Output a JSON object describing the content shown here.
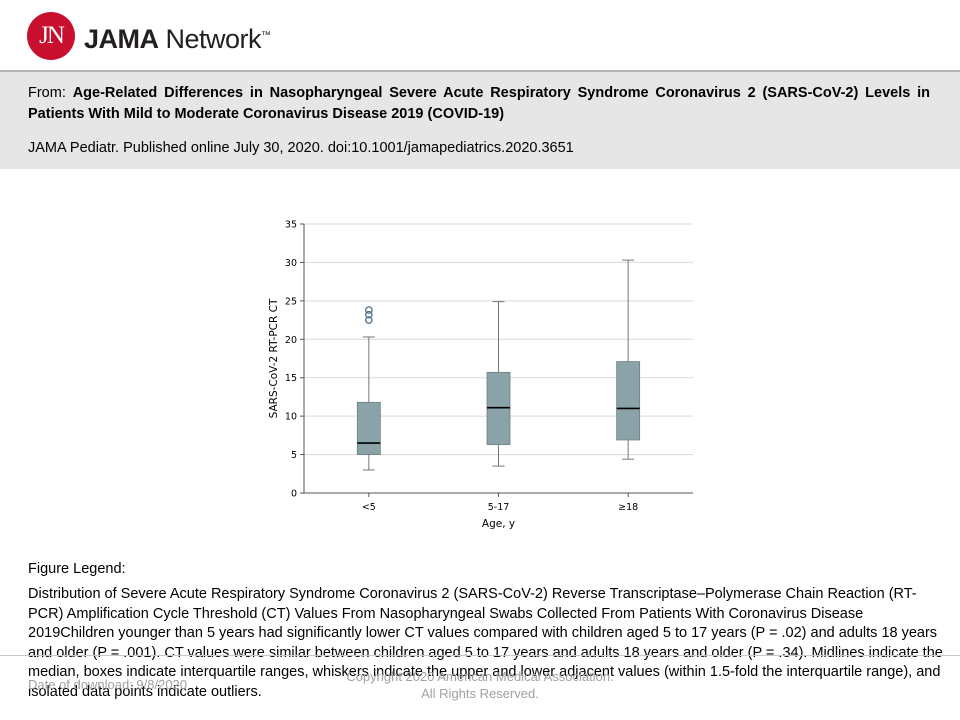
{
  "header": {
    "logo_mark": "JN",
    "logo_brand": "JAMA",
    "logo_suffix": " Network",
    "logo_tm": "™"
  },
  "article": {
    "from_prefix": "From: ",
    "title": "Age-Related Differences in Nasopharyngeal Severe Acute Respiratory Syndrome Coronavirus 2 (SARS-CoV-2) Levels in Patients With Mild to Moderate Coronavirus Disease 2019 (COVID-19)",
    "citation": "JAMA Pediatr. Published online  July 30, 2020. doi:10.1001/jamapediatrics.2020.3651"
  },
  "chart_data": {
    "type": "box",
    "xlabel": "Age, y",
    "ylabel": "SARS-CoV-2 RT-PCR CT",
    "ylim": [
      0,
      35
    ],
    "yticks": [
      0,
      5,
      10,
      15,
      20,
      25,
      30,
      35
    ],
    "grid": "horizontal",
    "box_color": "#8aa3a8",
    "categories": [
      "<5",
      "5-17",
      "≥18"
    ],
    "boxes": [
      {
        "category": "<5",
        "whisker_low": 3.0,
        "q1": 5.0,
        "median": 6.5,
        "q3": 11.8,
        "whisker_high": 20.3,
        "outliers": [
          22.5,
          23.2,
          23.8
        ]
      },
      {
        "category": "5-17",
        "whisker_low": 3.5,
        "q1": 6.3,
        "median": 11.1,
        "q3": 15.7,
        "whisker_high": 24.9,
        "outliers": []
      },
      {
        "category": "≥18",
        "whisker_low": 4.4,
        "q1": 6.9,
        "median": 11.0,
        "q3": 17.1,
        "whisker_high": 30.3,
        "outliers": []
      }
    ]
  },
  "legend": {
    "title": "Figure Legend:",
    "body": "Distribution of Severe Acute Respiratory Syndrome Coronavirus 2 (SARS-CoV-2) Reverse Transcriptase–Polymerase Chain Reaction (RT-PCR) Amplification Cycle Threshold (CT) Values From Nasopharyngeal Swabs Collected From Patients With Coronavirus Disease 2019Children younger than 5 years had significantly lower CT values compared with children aged 5 to 17 years (P = .02) and adults 18 years and older (P = .001). CT values were similar between children aged 5 to 17 years and adults 18 years and older (P = .34). Midlines indicate the median, boxes indicate interquartile ranges, whiskers indicate the upper and lower adjacent values (within 1.5-fold the interquartile range), and isolated data points indicate outliers."
  },
  "footer": {
    "download_date": "Date of download:  9/8/2020",
    "copyright": "Copyright 2020 American Medical Association.",
    "rights": "All Rights Reserved."
  }
}
